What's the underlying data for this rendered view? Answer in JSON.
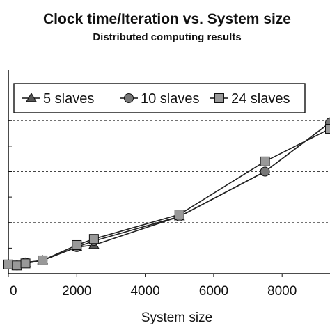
{
  "chart_data": {
    "type": "line",
    "title": "Clock time/Iteration vs. System size",
    "subtitle": "Distributed computing results",
    "xlabel": "System size",
    "ylabel": "",
    "xlim": [
      0,
      9400
    ],
    "ylim": [
      0,
      1
    ],
    "x_ticks": [
      0,
      2000,
      4000,
      6000,
      8000
    ],
    "x_tick_labels": [
      "0",
      "2000",
      "4000",
      "6000",
      "8000"
    ],
    "y_gridlines": [
      0.25,
      0.5,
      0.75
    ],
    "y_ticks_minor": [
      0.125,
      0.25,
      0.375,
      0.5,
      0.625,
      0.75
    ],
    "grid": "horizontal dashed",
    "legend": {
      "placement": "top-left",
      "entries": [
        "5 slaves",
        "10 slaves",
        "24 slaves"
      ]
    },
    "series": [
      {
        "name": "5 slaves",
        "marker": "triangle",
        "color": "#222222",
        "x": [
          0,
          250,
          500,
          1000,
          2000,
          2500,
          5000,
          7500,
          9400
        ],
        "y": [
          0.04,
          0.035,
          0.05,
          0.065,
          0.13,
          0.14,
          0.28,
          0.5,
          0.74
        ]
      },
      {
        "name": "10 slaves",
        "marker": "circle",
        "color": "#222222",
        "x": [
          0,
          250,
          500,
          1000,
          2000,
          2500,
          5000,
          7500,
          9400
        ],
        "y": [
          0.045,
          0.04,
          0.055,
          0.065,
          0.13,
          0.16,
          0.28,
          0.5,
          0.74
        ]
      },
      {
        "name": "24 slaves",
        "marker": "square",
        "color": "#222222",
        "x": [
          0,
          250,
          500,
          1000,
          2000,
          2500,
          5000,
          7500,
          9400
        ],
        "y": [
          0.045,
          0.04,
          0.05,
          0.065,
          0.14,
          0.17,
          0.29,
          0.55,
          0.71
        ]
      }
    ]
  }
}
